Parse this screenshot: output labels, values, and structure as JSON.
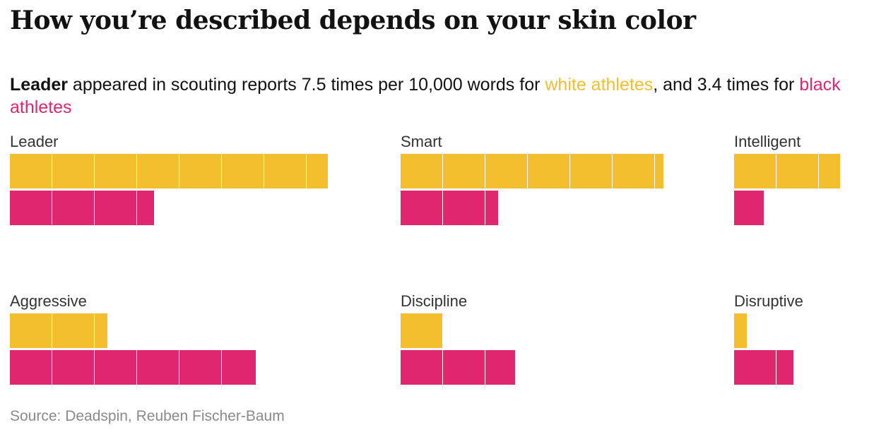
{
  "title": "How you’re described depends on your skin color",
  "subtitle": {
    "lead_word": "Leader",
    "text_1": " appeared in scouting reports 7.5 times per 10,000 words for ",
    "white_label": "white athletes",
    "text_2": ", and 3.4 times for ",
    "black_label": "black athletes"
  },
  "colors": {
    "white": "#f4bf2f",
    "black": "#e0266f"
  },
  "chart_data": {
    "type": "bar",
    "unit": "times per 10,000 words",
    "series": [
      {
        "key": "white",
        "color": "#f4bf2f"
      },
      {
        "key": "black",
        "color": "#e0266f"
      }
    ],
    "panels": [
      {
        "label": "Leader",
        "white": 7.5,
        "black": 3.4
      },
      {
        "label": "Smart",
        "white": 6.2,
        "black": 2.3
      },
      {
        "label": "Intelligent",
        "white": 2.5,
        "black": 0.7
      },
      {
        "label": "Aggressive",
        "white": 2.3,
        "black": 5.8
      },
      {
        "label": "Discipline",
        "white": 1.0,
        "black": 2.7
      },
      {
        "label": "Disruptive",
        "white": 0.3,
        "black": 1.4
      }
    ]
  },
  "source": "Source: Deadspin, Reuben Fischer-Baum"
}
